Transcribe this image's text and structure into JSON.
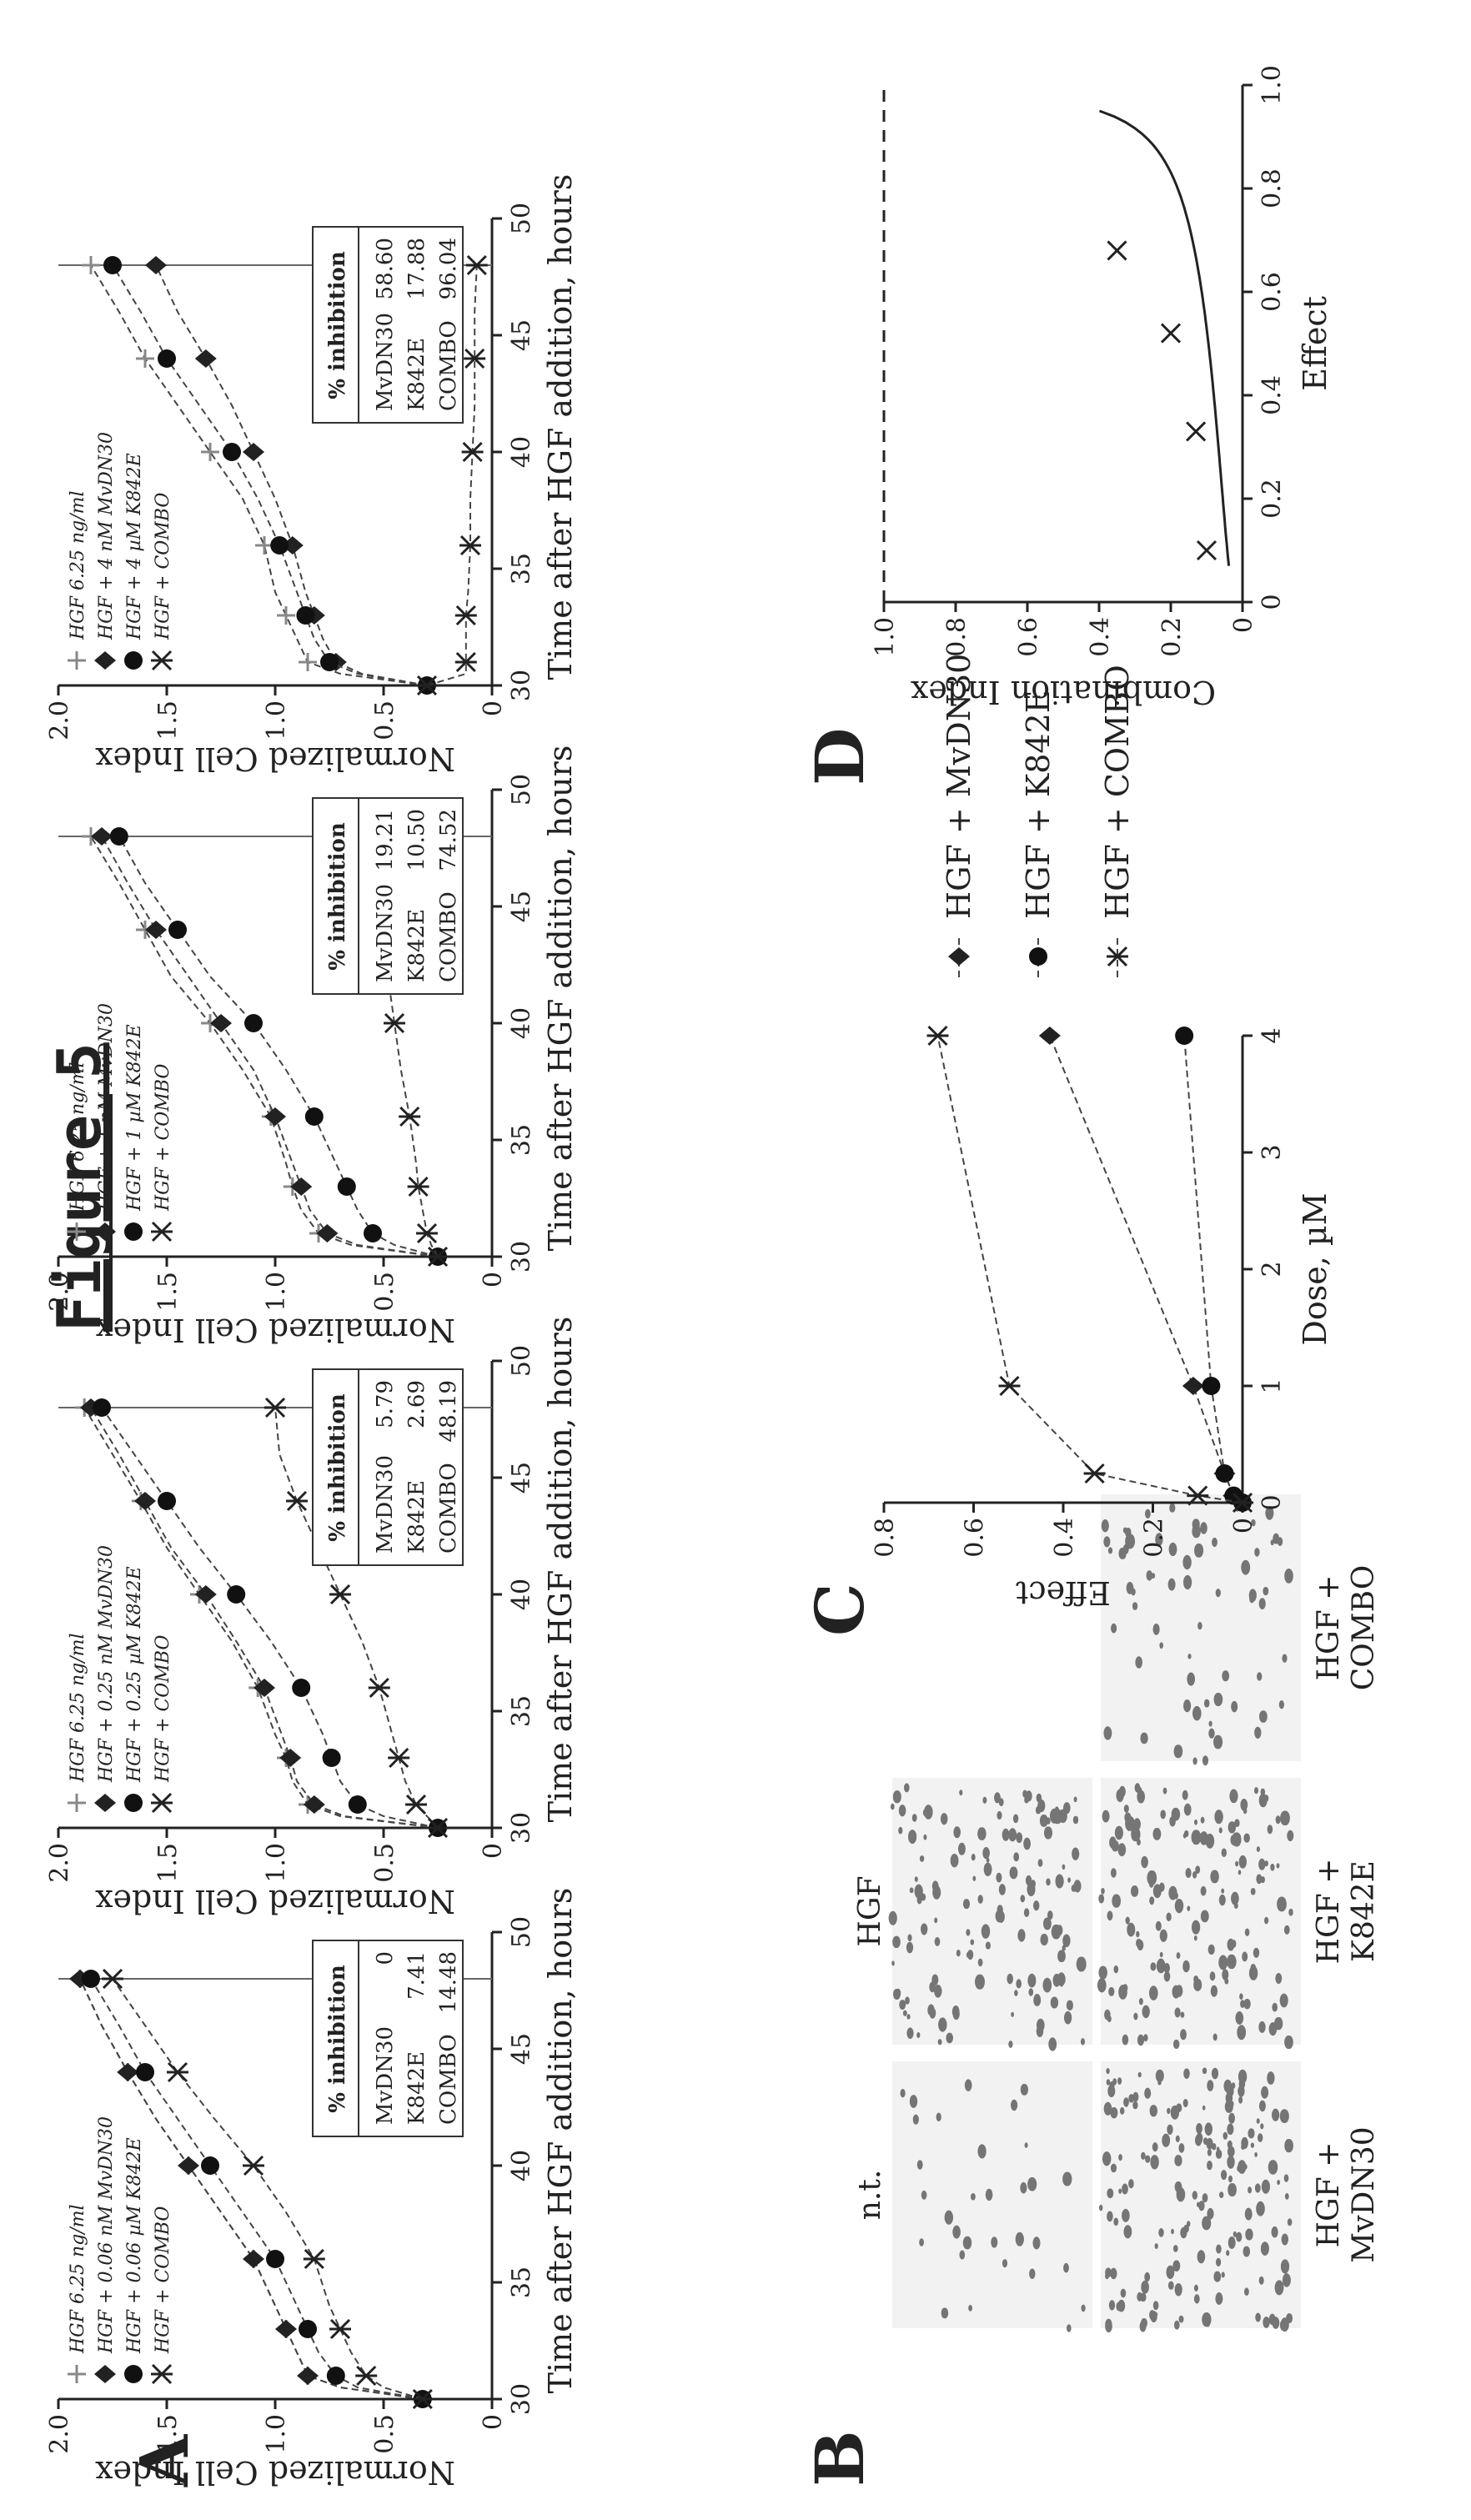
{
  "figure_title": "Figure 5",
  "panel_labels": [
    "A",
    "B",
    "C",
    "D"
  ],
  "chart_data": [
    {
      "type": "line",
      "panel": "A",
      "xlabel": "Time after HGF addition, hours",
      "ylabel": "Normalized Cell Index",
      "xlim": [
        30,
        50
      ],
      "ylim": [
        0,
        2.0
      ],
      "xticks": [
        "30",
        "35",
        "40",
        "45",
        "50"
      ],
      "yticks": [
        "0",
        "0.5",
        "1.0",
        "1.5",
        "2.0"
      ],
      "x": [
        30,
        30.5,
        31,
        32,
        33,
        34,
        36,
        38,
        40,
        42,
        44,
        46,
        48
      ],
      "series": [
        {
          "name": "HGF 6.25 ng/ml",
          "values": [
            0.32,
            0.7,
            0.85,
            0.9,
            0.95,
            1.0,
            1.1,
            1.25,
            1.4,
            1.55,
            1.68,
            1.8,
            1.9
          ]
        },
        {
          "name": "HGF + 0.06 nM MvDN30",
          "values": [
            0.32,
            0.7,
            0.85,
            0.9,
            0.95,
            1.0,
            1.1,
            1.25,
            1.4,
            1.55,
            1.68,
            1.8,
            1.9
          ]
        },
        {
          "name": "HGF + 0.06 µM K842E",
          "values": [
            0.32,
            0.62,
            0.72,
            0.8,
            0.85,
            0.9,
            1.0,
            1.15,
            1.3,
            1.45,
            1.6,
            1.72,
            1.85
          ]
        },
        {
          "name": "HGF + COMBO",
          "values": [
            0.32,
            0.5,
            0.58,
            0.65,
            0.7,
            0.75,
            0.82,
            0.95,
            1.1,
            1.28,
            1.45,
            1.6,
            1.75
          ]
        }
      ],
      "inhibition": {
        "header": "% inhibition",
        "rows": [
          [
            "MvDN30",
            "0"
          ],
          [
            "K842E",
            "7.41"
          ],
          [
            "COMBO",
            "14.48"
          ]
        ]
      }
    },
    {
      "type": "line",
      "panel": "A",
      "xlabel": "Time after HGF addition, hours",
      "ylabel": "Normalized Cell Index",
      "xlim": [
        30,
        50
      ],
      "ylim": [
        0,
        2.0
      ],
      "xticks": [
        "30",
        "35",
        "40",
        "45",
        "50"
      ],
      "yticks": [
        "0",
        "0.5",
        "1.0",
        "1.5",
        "2.0"
      ],
      "x": [
        30,
        30.5,
        31,
        32,
        33,
        34,
        36,
        38,
        40,
        42,
        44,
        46,
        48
      ],
      "series": [
        {
          "name": "HGF 6.25 ng/ml",
          "values": [
            0.25,
            0.7,
            0.85,
            0.92,
            0.95,
            1.0,
            1.08,
            1.2,
            1.35,
            1.5,
            1.62,
            1.75,
            1.88
          ]
        },
        {
          "name": "HGF + 0.25 nM MvDN30",
          "values": [
            0.25,
            0.68,
            0.82,
            0.9,
            0.93,
            0.97,
            1.05,
            1.18,
            1.32,
            1.48,
            1.6,
            1.72,
            1.85
          ]
        },
        {
          "name": "HGF + 0.25 µM K842E",
          "values": [
            0.25,
            0.5,
            0.62,
            0.7,
            0.74,
            0.78,
            0.88,
            1.02,
            1.18,
            1.35,
            1.5,
            1.65,
            1.8
          ]
        },
        {
          "name": "HGF + COMBO",
          "values": [
            0.25,
            0.3,
            0.35,
            0.4,
            0.43,
            0.46,
            0.52,
            0.6,
            0.7,
            0.8,
            0.9,
            0.98,
            1.0
          ]
        }
      ],
      "inhibition": {
        "header": "% inhibition",
        "rows": [
          [
            "MvDN30",
            "5.79"
          ],
          [
            "K842E",
            "2.69"
          ],
          [
            "COMBO",
            "48.19"
          ]
        ]
      }
    },
    {
      "type": "line",
      "panel": "A",
      "xlabel": "Time after HGF addition, hours",
      "ylabel": "Normalized Cell Index",
      "xlim": [
        30,
        50
      ],
      "ylim": [
        0,
        2.0
      ],
      "xticks": [
        "30",
        "35",
        "40",
        "45",
        "50"
      ],
      "yticks": [
        "0",
        "0.5",
        "1.0",
        "1.5",
        "2.0"
      ],
      "x": [
        30,
        30.5,
        31,
        32,
        33,
        34,
        36,
        38,
        40,
        42,
        44,
        46,
        48
      ],
      "series": [
        {
          "name": "HGF 6.25 ng/ml",
          "values": [
            0.25,
            0.65,
            0.8,
            0.88,
            0.92,
            0.95,
            1.02,
            1.15,
            1.3,
            1.48,
            1.6,
            1.72,
            1.85
          ]
        },
        {
          "name": "HGF + 1 nM MvDN30",
          "values": [
            0.25,
            0.62,
            0.76,
            0.84,
            0.88,
            0.92,
            1.0,
            1.1,
            1.25,
            1.4,
            1.55,
            1.68,
            1.8
          ]
        },
        {
          "name": "HGF + 1 µM K842E",
          "values": [
            0.25,
            0.45,
            0.55,
            0.62,
            0.67,
            0.72,
            0.82,
            0.95,
            1.1,
            1.3,
            1.45,
            1.6,
            1.72
          ]
        },
        {
          "name": "HGF + COMBO",
          "values": [
            0.25,
            0.28,
            0.3,
            0.32,
            0.34,
            0.35,
            0.38,
            0.42,
            0.45,
            0.48,
            0.5,
            0.52,
            0.55
          ]
        }
      ],
      "inhibition": {
        "header": "% inhibition",
        "rows": [
          [
            "MvDN30",
            "19.21"
          ],
          [
            "K842E",
            "10.50"
          ],
          [
            "COMBO",
            "74.52"
          ]
        ]
      }
    },
    {
      "type": "line",
      "panel": "A",
      "xlabel": "Time after HGF addition, hours",
      "ylabel": "Normalized Cell Index",
      "xlim": [
        30,
        50
      ],
      "ylim": [
        0,
        2.0
      ],
      "xticks": [
        "30",
        "35",
        "40",
        "45",
        "50"
      ],
      "yticks": [
        "0",
        "0.5",
        "1.0",
        "1.5",
        "2.0"
      ],
      "x": [
        30,
        30.5,
        31,
        32,
        33,
        34,
        36,
        38,
        40,
        42,
        44,
        46,
        48
      ],
      "series": [
        {
          "name": "HGF 6.25 ng/ml",
          "values": [
            0.3,
            0.7,
            0.85,
            0.9,
            0.95,
            1.0,
            1.05,
            1.15,
            1.3,
            1.45,
            1.6,
            1.72,
            1.85
          ]
        },
        {
          "name": "HGF + 4 nM MvDN30",
          "values": [
            0.3,
            0.6,
            0.72,
            0.78,
            0.82,
            0.86,
            0.92,
            1.0,
            1.1,
            1.2,
            1.32,
            1.45,
            1.55
          ]
        },
        {
          "name": "HGF + 4 µM K842E",
          "values": [
            0.3,
            0.62,
            0.75,
            0.82,
            0.86,
            0.9,
            0.98,
            1.08,
            1.2,
            1.35,
            1.5,
            1.62,
            1.75
          ]
        },
        {
          "name": "HGF + COMBO",
          "values": [
            0.3,
            0.12,
            0.12,
            0.12,
            0.12,
            0.11,
            0.1,
            0.1,
            0.09,
            0.08,
            0.08,
            0.08,
            0.07
          ]
        }
      ],
      "inhibition": {
        "header": "% inhibition",
        "rows": [
          [
            "MvDN30",
            "58.60"
          ],
          [
            "K842E",
            "17.88"
          ],
          [
            "COMBO",
            "96.04"
          ]
        ]
      }
    },
    {
      "type": "line",
      "panel": "C",
      "xlabel": "Dose, µM",
      "ylabel": "Effect",
      "xlim": [
        0,
        4
      ],
      "ylim": [
        0,
        0.8
      ],
      "xticks": [
        "0",
        "1",
        "2",
        "3",
        "4"
      ],
      "yticks": [
        "0",
        "0.2",
        "0.4",
        "0.6",
        "0.8"
      ],
      "series": [
        {
          "name": "HGF + MvDN30",
          "x": [
            0.06,
            0.25,
            1,
            4
          ],
          "y": [
            0.02,
            0.04,
            0.11,
            0.43
          ]
        },
        {
          "name": "HGF + K842E",
          "x": [
            0.06,
            0.25,
            1,
            4
          ],
          "y": [
            0.02,
            0.04,
            0.07,
            0.13
          ]
        },
        {
          "name": "HGF + COMBO",
          "x": [
            0.06,
            0.25,
            1,
            4
          ],
          "y": [
            0.1,
            0.33,
            0.52,
            0.68
          ]
        }
      ],
      "legend_position": "right"
    },
    {
      "type": "scatter",
      "panel": "D",
      "xlabel": "Effect",
      "ylabel": "Combination Index",
      "xlim": [
        0,
        1.0
      ],
      "ylim": [
        0,
        1.0
      ],
      "xticks": [
        "0",
        "0.2",
        "0.4",
        "0.6",
        "0.8",
        "1.0"
      ],
      "yticks": [
        "0",
        "0.2",
        "0.4",
        "0.6",
        "0.8",
        "1.0"
      ],
      "points": [
        {
          "x": 0.1,
          "y": 0.1
        },
        {
          "x": 0.33,
          "y": 0.13
        },
        {
          "x": 0.52,
          "y": 0.2
        },
        {
          "x": 0.68,
          "y": 0.35
        }
      ],
      "reference_line": 1.0
    }
  ],
  "panel_b": {
    "images": [
      {
        "label": "n.t.",
        "density": 0.12
      },
      {
        "label": "HGF",
        "density": 0.55
      },
      {
        "label": "HGF + MvDN30",
        "density": 0.7
      },
      {
        "label": "HGF + K842E",
        "density": 0.62
      },
      {
        "label": "HGF + COMBO",
        "density": 0.25
      }
    ]
  }
}
